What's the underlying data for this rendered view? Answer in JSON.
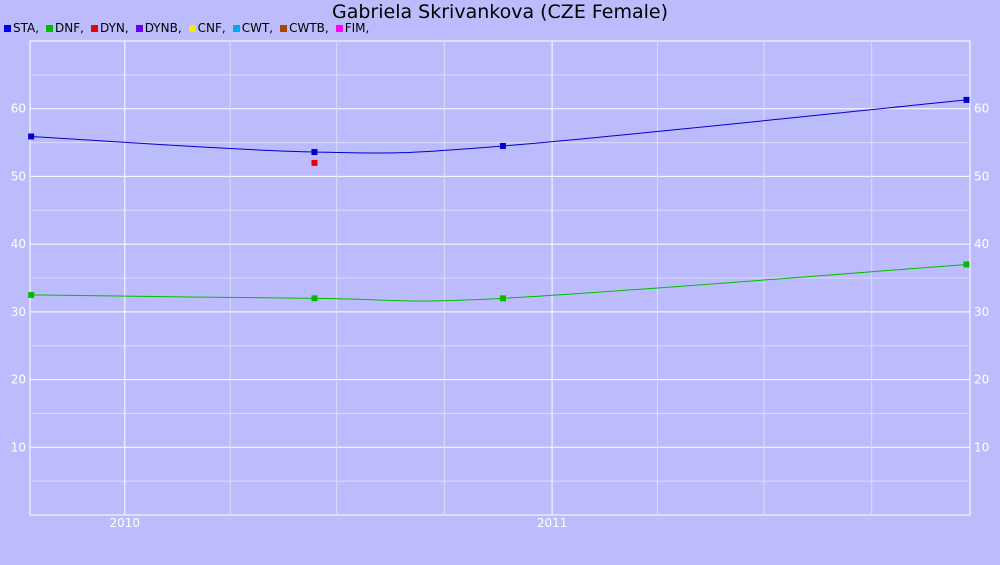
{
  "chart_data": {
    "type": "line",
    "title": "Gabriela Skrivankova (CZE Female)",
    "legend": [
      {
        "label": "STA,",
        "color": "#0000ee"
      },
      {
        "label": "DNF,",
        "color": "#00bb00"
      },
      {
        "label": "DYN,",
        "color": "#ee0000"
      },
      {
        "label": "DYNB,",
        "color": "#6600ee"
      },
      {
        "label": "CNF,",
        "color": "#eeee00"
      },
      {
        "label": "CWT,",
        "color": "#00aaee"
      },
      {
        "label": "CWTB,",
        "color": "#aa4400"
      },
      {
        "label": "FIM,",
        "color": "#ff00ff"
      }
    ],
    "legend_position": "top-left",
    "grid": true,
    "x_axis": {
      "type": "date",
      "min": "2009-10-12",
      "max": "2011-12-24",
      "ticks": [
        {
          "label": "2010",
          "date": "2010-01-01"
        },
        {
          "label": "2011",
          "date": "2011-01-01"
        }
      ]
    },
    "y_axis": {
      "min": 0,
      "max": 70,
      "ticks": [
        10,
        20,
        30,
        40,
        50,
        60
      ],
      "labels_both_sides": true
    },
    "series": [
      {
        "name": "STA",
        "color": "#0000cc",
        "line": true,
        "points": [
          {
            "x": "2009-10-13",
            "y": 55.9
          },
          {
            "x": "2010-06-12",
            "y": 53.6
          },
          {
            "x": "2010-11-20",
            "y": 54.5
          },
          {
            "x": "2011-12-21",
            "y": 61.3
          }
        ]
      },
      {
        "name": "DNF",
        "color": "#00bb00",
        "line": true,
        "points": [
          {
            "x": "2009-10-13",
            "y": 32.5
          },
          {
            "x": "2010-06-12",
            "y": 32.0
          },
          {
            "x": "2010-11-20",
            "y": 32.0
          },
          {
            "x": "2011-12-21",
            "y": 37.0
          }
        ]
      },
      {
        "name": "DYN",
        "color": "#ee0000",
        "line": false,
        "points": [
          {
            "x": "2010-06-12",
            "y": 52.0
          }
        ]
      }
    ]
  }
}
